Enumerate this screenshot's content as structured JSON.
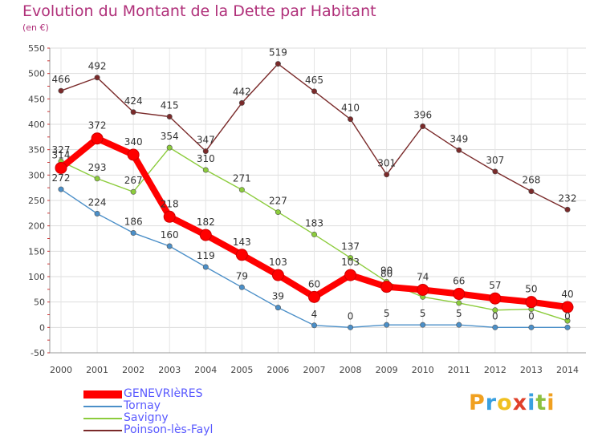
{
  "chart_data": {
    "type": "line",
    "title": "Evolution du Montant de la Dette par Habitant",
    "subtitle": "(en €)",
    "xlabel": "",
    "ylabel": "",
    "x": [
      "2000",
      "2001",
      "2002",
      "2003",
      "2004",
      "2005",
      "2006",
      "2007",
      "2008",
      "2009",
      "2010",
      "2011",
      "2012",
      "2013",
      "2014"
    ],
    "ylim": [
      -50,
      550
    ],
    "yticks": [
      "-50",
      "0",
      "50",
      "100",
      "150",
      "200",
      "250",
      "300",
      "350",
      "400",
      "450",
      "500",
      "550"
    ],
    "grid": true,
    "legend_position": "bottom-left",
    "series": [
      {
        "name": "GENEVRIèRES",
        "color": "#ff0000",
        "values": [
          314,
          372,
          340,
          218,
          182,
          143,
          103,
          60,
          103,
          80,
          74,
          66,
          57,
          50,
          40
        ],
        "labels": [
          "314",
          "372",
          "340",
          "218",
          "182",
          "143",
          "103",
          "60",
          "103",
          "80",
          "74",
          "66",
          "57",
          "50",
          "40"
        ]
      },
      {
        "name": "Tornay",
        "color": "#4b8fc8",
        "values": [
          272,
          224,
          186,
          160,
          119,
          79,
          39,
          4,
          0,
          5,
          5,
          5,
          0,
          0,
          0
        ],
        "labels": [
          "272",
          "224",
          "186",
          "160",
          "119",
          "79",
          "39",
          "4",
          "0",
          "5",
          "5",
          "5",
          "0",
          "0",
          "0"
        ]
      },
      {
        "name": "Savigny",
        "color": "#8ccc3c",
        "values": [
          327,
          293,
          267,
          354,
          310,
          271,
          227,
          183,
          137,
          90,
          60,
          48,
          34,
          36,
          13
        ],
        "labels": [
          "327",
          "293",
          "267",
          "354",
          "310",
          "271",
          "227",
          "183",
          "137",
          "90",
          "",
          "",
          "",
          "",
          ""
        ]
      },
      {
        "name": "Poinson-lès-Fayl",
        "color": "#7a2a2a",
        "values": [
          466,
          492,
          424,
          415,
          347,
          442,
          519,
          465,
          410,
          301,
          396,
          349,
          307,
          268,
          232
        ],
        "labels": [
          "466",
          "492",
          "424",
          "415",
          "347",
          "442",
          "519",
          "465",
          "410",
          "301",
          "396",
          "349",
          "307",
          "268",
          "232"
        ]
      }
    ]
  },
  "brand": {
    "letters": [
      "P",
      "r",
      "o",
      "x",
      "i",
      "t",
      "i"
    ],
    "colors": [
      "#f0a020",
      "#3aa0e0",
      "#f0c020",
      "#e0402a",
      "#3aa0e0",
      "#8cc040",
      "#f0a020"
    ]
  }
}
